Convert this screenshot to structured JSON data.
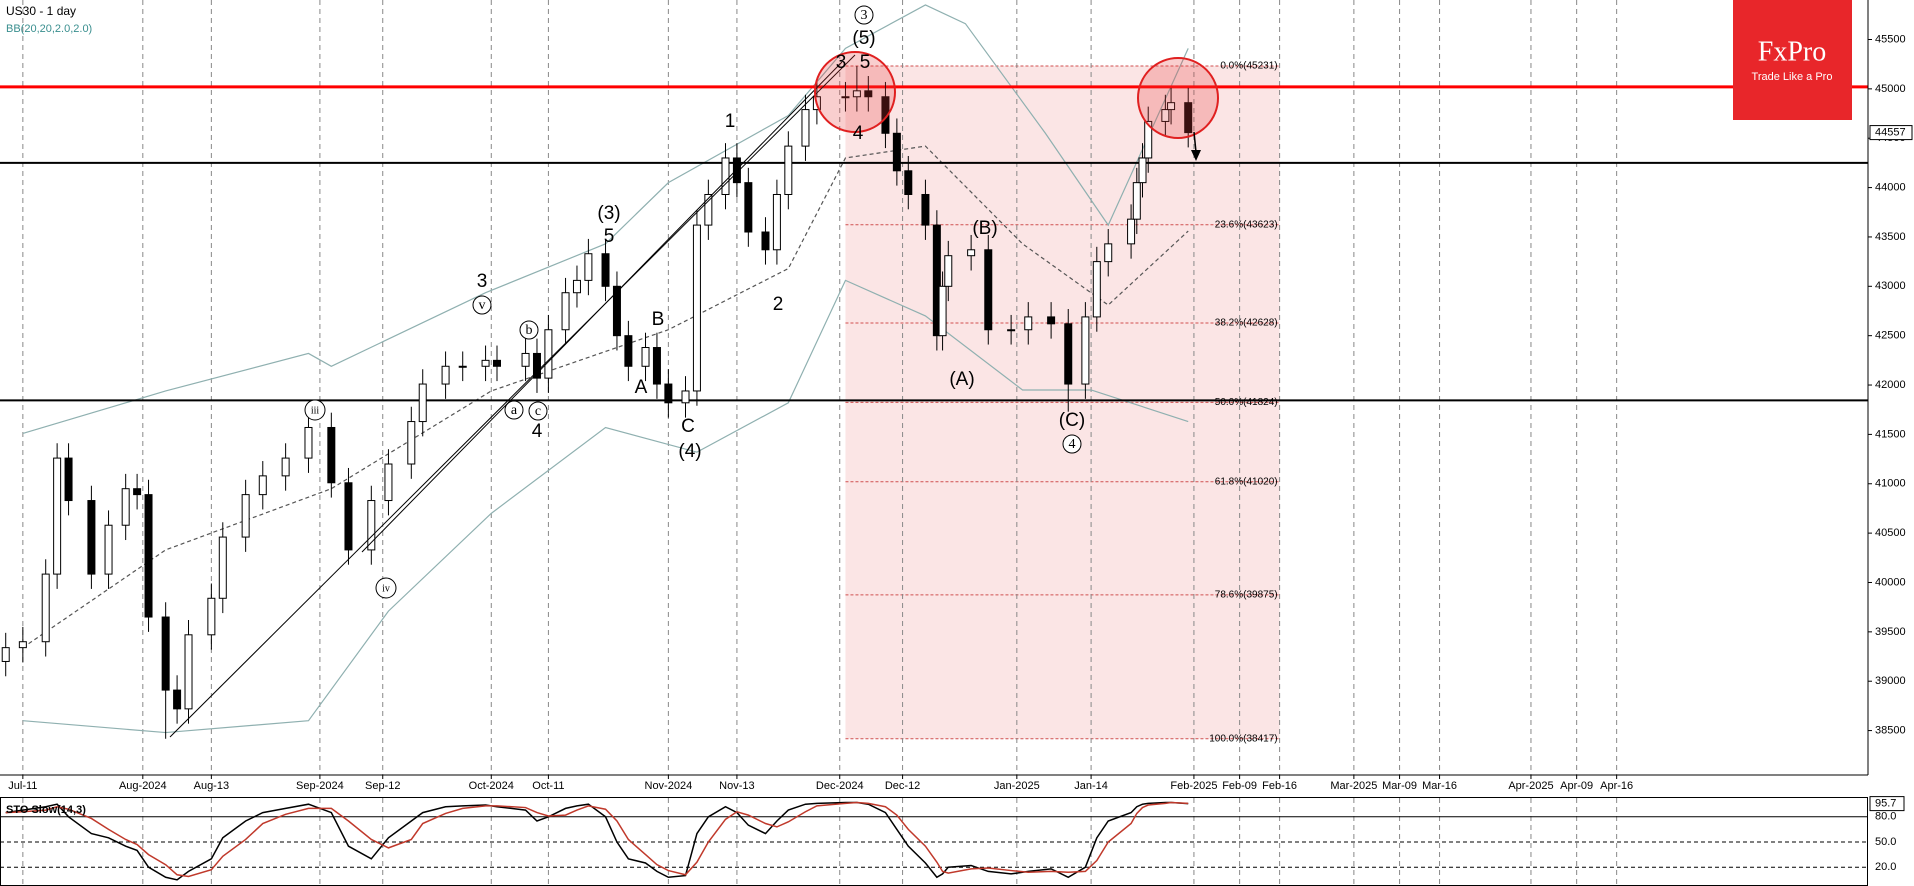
{
  "chart_data": [
    {
      "type": "candlestick",
      "title": "US30 - 1 day",
      "subtitle": "BB(20,20,2.0,2.0)",
      "x": [
        "2024-07-08",
        "2024-07-11",
        "2024-07-15",
        "2024-07-17",
        "2024-07-19",
        "2024-07-23",
        "2024-07-26",
        "2024-07-29",
        "2024-07-31",
        "2024-08-02",
        "2024-08-05",
        "2024-08-07",
        "2024-08-09",
        "2024-08-13",
        "2024-08-15",
        "2024-08-19",
        "2024-08-22",
        "2024-08-26",
        "2024-08-30",
        "2024-09-03",
        "2024-09-06",
        "2024-09-10",
        "2024-09-13",
        "2024-09-17",
        "2024-09-19",
        "2024-09-23",
        "2024-09-26",
        "2024-09-30",
        "2024-10-02",
        "2024-10-07",
        "2024-10-09",
        "2024-10-11",
        "2024-10-14",
        "2024-10-16",
        "2024-10-18",
        "2024-10-21",
        "2024-10-23",
        "2024-10-25",
        "2024-10-28",
        "2024-10-30",
        "2024-11-01",
        "2024-11-04",
        "2024-11-06",
        "2024-11-08",
        "2024-11-11",
        "2024-11-13",
        "2024-11-15",
        "2024-11-18",
        "2024-11-20",
        "2024-11-22",
        "2024-11-25",
        "2024-11-27",
        "2024-12-02",
        "2024-12-04",
        "2024-12-06",
        "2024-12-09",
        "2024-12-11",
        "2024-12-13",
        "2024-12-16",
        "2024-12-18",
        "2024-12-19",
        "2024-12-20",
        "2024-12-24",
        "2024-12-27",
        "2024-12-31",
        "2025-01-03",
        "2025-01-07",
        "2025-01-10",
        "2025-01-13",
        "2025-01-15",
        "2025-01-17",
        "2025-01-21",
        "2025-01-22",
        "2025-01-23",
        "2025-01-24",
        "2025-01-27",
        "2025-01-28",
        "2025-01-31"
      ],
      "open": [
        39200,
        39340,
        39400,
        40085,
        41260,
        40830,
        40085,
        40580,
        40950,
        40890,
        39650,
        38910,
        38720,
        39470,
        39840,
        40460,
        40890,
        41080,
        41260,
        41570,
        41010,
        40330,
        40830,
        41200,
        41630,
        42010,
        42190,
        42190,
        42250,
        42190,
        42320,
        42070,
        42560,
        42935,
        43060,
        43330,
        43000,
        42500,
        42190,
        42380,
        42010,
        41820,
        41940,
        43620,
        43930,
        44300,
        44050,
        43550,
        43370,
        43930,
        44420,
        44790,
        44920,
        44920,
        44980,
        44920,
        44550,
        44170,
        43930,
        43620,
        42500,
        43000,
        43310,
        43370,
        42560,
        42560,
        42690,
        42620,
        42010,
        42690,
        43250,
        43430,
        43680,
        44050,
        44300,
        44670,
        44790,
        44860
      ],
      "high": [
        39490,
        39550,
        40235,
        41410,
        41410,
        40980,
        40730,
        41100,
        41100,
        41040,
        39800,
        39060,
        39620,
        39990,
        40610,
        41040,
        41230,
        41410,
        41720,
        41720,
        41160,
        40980,
        41350,
        41780,
        42160,
        42340,
        42340,
        42400,
        42400,
        42470,
        42470,
        42710,
        43085,
        43210,
        43480,
        43480,
        43150,
        42650,
        42530,
        42530,
        42160,
        42090,
        43770,
        44080,
        44450,
        44450,
        44200,
        43700,
        44080,
        44570,
        44940,
        45070,
        45070,
        45231,
        45130,
        45070,
        44700,
        44320,
        44080,
        43770,
        43150,
        43460,
        43520,
        43520,
        42710,
        42840,
        42840,
        42770,
        42840,
        43400,
        43580,
        43830,
        44200,
        44450,
        44820,
        44940,
        45010,
        45010
      ],
      "low": [
        39050,
        39190,
        39250,
        39935,
        40680,
        39935,
        39935,
        40430,
        40740,
        39500,
        38417,
        38570,
        38570,
        39320,
        39690,
        40310,
        40740,
        40930,
        41110,
        40860,
        40180,
        40180,
        40680,
        41050,
        41480,
        41860,
        42040,
        42040,
        42040,
        42040,
        41920,
        41920,
        42410,
        42785,
        42910,
        42850,
        42350,
        42040,
        42040,
        41860,
        41670,
        41670,
        41790,
        43470,
        43780,
        43900,
        43400,
        43220,
        43220,
        43780,
        44270,
        44640,
        44770,
        44770,
        44770,
        44400,
        44020,
        43780,
        43470,
        42350,
        42350,
        42850,
        43160,
        42410,
        42410,
        42410,
        42470,
        41730,
        41860,
        42540,
        43100,
        43280,
        43530,
        43900,
        44150,
        44520,
        44640,
        44407
      ],
      "close": [
        39340,
        39400,
        40085,
        41260,
        40830,
        40085,
        40580,
        40950,
        40890,
        39650,
        38910,
        38720,
        39470,
        39840,
        40460,
        40890,
        41080,
        41260,
        41570,
        41010,
        40330,
        40830,
        41200,
        41630,
        42010,
        42190,
        42190,
        42250,
        42190,
        42320,
        42070,
        42560,
        42935,
        43060,
        43330,
        43000,
        42500,
        42190,
        42380,
        42010,
        41820,
        41940,
        43620,
        43930,
        44300,
        44050,
        43550,
        43370,
        43930,
        44420,
        44790,
        44920,
        44920,
        44980,
        44920,
        44550,
        44170,
        43930,
        43620,
        42500,
        43000,
        43310,
        43370,
        42560,
        42560,
        42690,
        42620,
        42010,
        42690,
        43250,
        43430,
        43680,
        44050,
        44300,
        44670,
        44790,
        44860,
        44557
      ],
      "up_color": "#ffffff",
      "down_color": "#000000",
      "xlim": [
        "2024-07-07",
        "2025-05-30"
      ],
      "xticks": [
        {
          "value": "2024-07-11",
          "label": "Jul-11"
        },
        {
          "value": "2024-08-01",
          "label": "Aug-2024"
        },
        {
          "value": "2024-08-13",
          "label": "Aug-13"
        },
        {
          "value": "2024-09-01",
          "label": "Sep-2024"
        },
        {
          "value": "2024-09-12",
          "label": "Sep-12"
        },
        {
          "value": "2024-10-01",
          "label": "Oct-2024"
        },
        {
          "value": "2024-10-11",
          "label": "Oct-11"
        },
        {
          "value": "2024-11-01",
          "label": "Nov-2024"
        },
        {
          "value": "2024-11-13",
          "label": "Nov-13"
        },
        {
          "value": "2024-12-01",
          "label": "Dec-2024"
        },
        {
          "value": "2024-12-12",
          "label": "Dec-12"
        },
        {
          "value": "2025-01-01",
          "label": "Jan-2025"
        },
        {
          "value": "2025-01-14",
          "label": "Jan-14"
        },
        {
          "value": "2025-02-01",
          "label": "Feb-2025"
        },
        {
          "value": "2025-02-09",
          "label": "Feb-09"
        },
        {
          "value": "2025-02-16",
          "label": "Feb-16"
        },
        {
          "value": "2025-03-01",
          "label": "Mar-2025"
        },
        {
          "value": "2025-03-09",
          "label": "Mar-09"
        },
        {
          "value": "2025-03-16",
          "label": "Mar-16"
        },
        {
          "value": "2025-04-01",
          "label": "Apr-2025"
        },
        {
          "value": "2025-04-09",
          "label": "Apr-09"
        },
        {
          "value": "2025-04-16",
          "label": "Apr-16"
        }
      ],
      "ylim": [
        38050,
        45900
      ],
      "yticks": [
        45500,
        45000,
        44500,
        44000,
        43500,
        43000,
        42500,
        42000,
        41500,
        41000,
        40500,
        40000,
        39500,
        39000,
        38500
      ],
      "grid": true,
      "bands": [
        {
          "color": "#8fb0b0",
          "dash": false,
          "x": [
            "2024-07-11",
            "2024-08-05",
            "2024-08-30",
            "2024-09-03",
            "2024-09-30",
            "2024-10-21",
            "2024-11-01",
            "2024-11-22",
            "2024-12-02",
            "2024-12-16",
            "2024-12-23",
            "2025-01-06",
            "2025-01-17",
            "2025-01-31"
          ],
          "values": [
            41510,
            41940,
            42320,
            42190,
            42935,
            43430,
            44050,
            44730,
            45410,
            45850,
            45660,
            44550,
            43620,
            45410
          ]
        },
        {
          "color": "#555555",
          "dash": true,
          "x": [
            "2024-07-11",
            "2024-08-05",
            "2024-09-03",
            "2024-10-01",
            "2024-11-01",
            "2024-11-22",
            "2024-12-02",
            "2024-12-16",
            "2025-01-02",
            "2025-01-17",
            "2025-01-31"
          ],
          "values": [
            39340,
            40330,
            40950,
            41940,
            42560,
            43180,
            44300,
            44420,
            43430,
            42810,
            43560
          ]
        },
        {
          "color": "#8fb0b0",
          "dash": false,
          "x": [
            "2024-07-11",
            "2024-08-05",
            "2024-08-30",
            "2024-09-13",
            "2024-10-01",
            "2024-10-21",
            "2024-11-06",
            "2024-11-22",
            "2024-12-02",
            "2024-12-16",
            "2025-01-02",
            "2025-01-14",
            "2025-01-31"
          ],
          "values": [
            38600,
            38480,
            38600,
            39710,
            40700,
            41570,
            41320,
            41820,
            43060,
            42700,
            41950,
            41950,
            41630
          ]
        }
      ],
      "hlines": [
        {
          "value": 45020,
          "color": "#ff0000"
        },
        {
          "value": 44250,
          "color": "#000000"
        },
        {
          "value": 41845,
          "color": "#000000"
        }
      ],
      "fib_range": [
        "2024-12-02",
        "2025-02-16"
      ],
      "fib_levels": [
        {
          "value": 45231,
          "label": "0.0%(45231)"
        },
        {
          "value": 43623,
          "label": "23.6%(43623)"
        },
        {
          "value": 42628,
          "label": "38.2%(42628)"
        },
        {
          "value": 41824,
          "label": "50.0%(41824)"
        },
        {
          "value": 41020,
          "label": "61.8%(41020)"
        },
        {
          "value": 39875,
          "label": "78.6%(39875)"
        },
        {
          "value": 38417,
          "label": "100.0%(38417)"
        }
      ],
      "annotations": [
        {
          "text": "3",
          "circled": true
        },
        {
          "text": "(5)",
          "circled": false
        },
        {
          "text": "3",
          "circled": false
        },
        {
          "text": "5",
          "circled": false
        },
        {
          "text": "4",
          "circled": false
        },
        {
          "text": "1",
          "circled": false
        },
        {
          "text": "(3)",
          "circled": false
        },
        {
          "text": "5",
          "circled": false
        },
        {
          "text": "2",
          "circled": false
        },
        {
          "text": "B",
          "circled": false
        },
        {
          "text": "A",
          "circled": false
        },
        {
          "text": "C",
          "circled": false
        },
        {
          "text": "(4)",
          "circled": false
        },
        {
          "text": "3",
          "circled": false
        },
        {
          "text": "v",
          "circled": true
        },
        {
          "text": "b",
          "circled": true
        },
        {
          "text": "a",
          "circled": true
        },
        {
          "text": "c",
          "circled": true
        },
        {
          "text": "4",
          "circled": false
        },
        {
          "text": "iii",
          "circled": true
        },
        {
          "text": "iv",
          "circled": true
        },
        {
          "text": "(B)",
          "circled": false
        },
        {
          "text": "(A)",
          "circled": false
        },
        {
          "text": "(C)",
          "circled": false
        },
        {
          "text": "4",
          "circled": true
        }
      ]
    },
    {
      "type": "line",
      "title": "STO Slow(14,3)",
      "x": [
        "2024-07-08",
        "2024-07-11",
        "2024-07-15",
        "2024-07-17",
        "2024-07-19",
        "2024-07-23",
        "2024-07-26",
        "2024-07-29",
        "2024-07-31",
        "2024-08-02",
        "2024-08-05",
        "2024-08-07",
        "2024-08-09",
        "2024-08-13",
        "2024-08-15",
        "2024-08-19",
        "2024-08-22",
        "2024-08-26",
        "2024-08-30",
        "2024-09-03",
        "2024-09-06",
        "2024-09-10",
        "2024-09-13",
        "2024-09-17",
        "2024-09-19",
        "2024-09-23",
        "2024-09-26",
        "2024-09-30",
        "2024-10-02",
        "2024-10-07",
        "2024-10-09",
        "2024-10-11",
        "2024-10-14",
        "2024-10-16",
        "2024-10-18",
        "2024-10-21",
        "2024-10-23",
        "2024-10-25",
        "2024-10-28",
        "2024-10-30",
        "2024-11-01",
        "2024-11-04",
        "2024-11-06",
        "2024-11-08",
        "2024-11-11",
        "2024-11-13",
        "2024-11-15",
        "2024-11-18",
        "2024-11-20",
        "2024-11-22",
        "2024-11-25",
        "2024-11-27",
        "2024-12-02",
        "2024-12-04",
        "2024-12-06",
        "2024-12-09",
        "2024-12-11",
        "2024-12-13",
        "2024-12-16",
        "2024-12-18",
        "2024-12-19",
        "2024-12-20",
        "2024-12-24",
        "2024-12-27",
        "2024-12-31",
        "2025-01-03",
        "2025-01-07",
        "2025-01-10",
        "2025-01-13",
        "2025-01-15",
        "2025-01-17",
        "2025-01-21",
        "2025-01-22",
        "2025-01-23",
        "2025-01-24",
        "2025-01-27",
        "2025-01-28",
        "2025-01-31"
      ],
      "xlim": [
        "2024-07-07",
        "2025-05-30"
      ],
      "series": [
        {
          "color": "#000000",
          "values": [
            85,
            88,
            92,
            95,
            80,
            60,
            55,
            45,
            40,
            20,
            8,
            5,
            15,
            30,
            55,
            75,
            85,
            90,
            95,
            85,
            45,
            30,
            55,
            75,
            85,
            92,
            93,
            94,
            92,
            88,
            75,
            80,
            90,
            93,
            95,
            80,
            50,
            30,
            25,
            15,
            8,
            10,
            60,
            80,
            92,
            85,
            70,
            60,
            75,
            88,
            95,
            96,
            97,
            97,
            95,
            85,
            65,
            45,
            25,
            8,
            12,
            20,
            22,
            15,
            12,
            15,
            18,
            8,
            20,
            55,
            75,
            85,
            92,
            95,
            96,
            97,
            97,
            95.7
          ]
        },
        {
          "color": "#c0392b",
          "values": [
            85,
            86,
            88,
            92,
            89,
            78,
            65,
            53,
            47,
            35,
            23,
            11,
            9,
            17,
            33,
            53,
            72,
            83,
            90,
            90,
            75,
            53,
            43,
            53,
            72,
            84,
            90,
            93,
            93,
            91,
            85,
            81,
            82,
            88,
            93,
            89,
            75,
            53,
            35,
            23,
            16,
            11,
            26,
            50,
            77,
            86,
            82,
            72,
            68,
            74,
            86,
            93,
            96,
            97,
            96,
            92,
            82,
            65,
            45,
            26,
            15,
            13,
            18,
            19,
            16,
            14,
            15,
            14,
            15,
            28,
            50,
            72,
            84,
            91,
            94,
            96,
            97,
            96
          ]
        }
      ],
      "ylim": [
        0,
        100
      ],
      "yticks": [
        {
          "value": 80,
          "label": "80.0"
        },
        {
          "value": 50,
          "label": "50.0"
        },
        {
          "value": 20,
          "label": "20.0"
        }
      ]
    }
  ],
  "logo": {
    "name": "FxPro",
    "tagline": "Trade Like a Pro"
  }
}
